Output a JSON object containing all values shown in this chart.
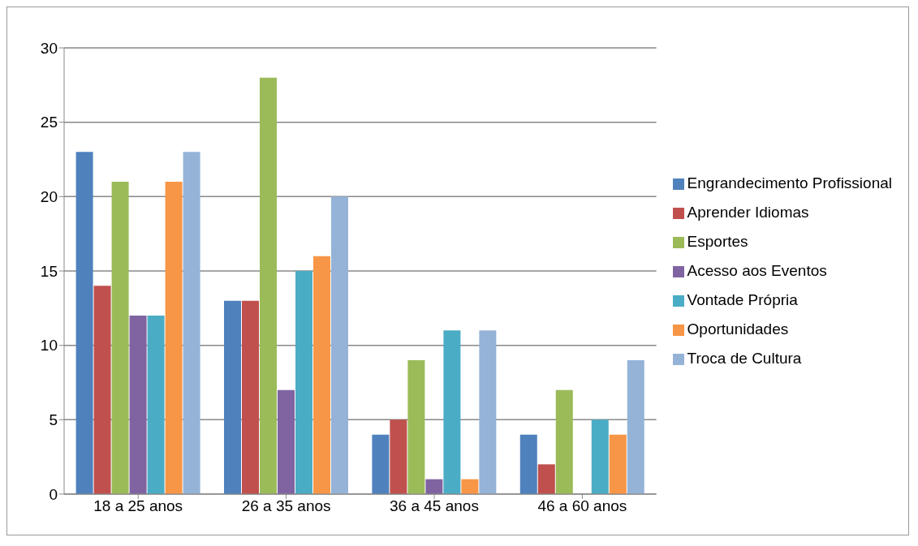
{
  "chart_data": {
    "type": "bar",
    "categories": [
      "18 a 25 anos",
      "26 a 35 anos",
      "36 a 45 anos",
      "46 a 60 anos"
    ],
    "series": [
      {
        "name": "Engrandecimento Profissional",
        "color": "#4f81bd",
        "values": [
          23,
          13,
          4,
          4
        ]
      },
      {
        "name": "Aprender Idiomas",
        "color": "#c0504d",
        "values": [
          14,
          13,
          5,
          2
        ]
      },
      {
        "name": "Esportes",
        "color": "#9bbb59",
        "values": [
          21,
          28,
          9,
          7
        ]
      },
      {
        "name": "Acesso aos Eventos",
        "color": "#8064a2",
        "values": [
          12,
          7,
          1,
          0
        ]
      },
      {
        "name": "Vontade Própria",
        "color": "#4bacc6",
        "values": [
          12,
          15,
          11,
          5
        ]
      },
      {
        "name": "Oportunidades",
        "color": "#f79646",
        "values": [
          21,
          16,
          1,
          4
        ]
      },
      {
        "name": "Troca de Cultura",
        "color": "#95b3d7",
        "values": [
          23,
          20,
          11,
          9
        ]
      }
    ],
    "ylim": [
      0,
      30
    ],
    "yticks": [
      0,
      5,
      10,
      15,
      20,
      25,
      30
    ],
    "grid": "y",
    "legend": "right"
  }
}
